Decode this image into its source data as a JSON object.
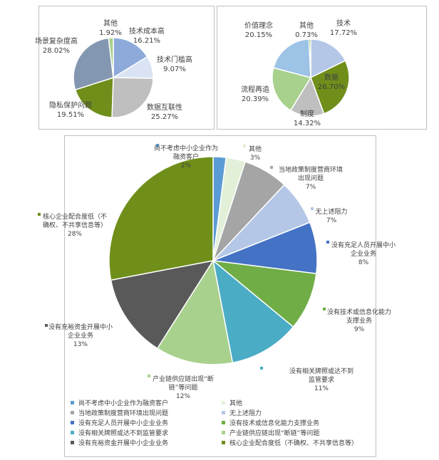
{
  "chart_data": [
    {
      "type": "pie",
      "slices": [
        {
          "label": "技术成本高",
          "value_label": "16.21%",
          "value": 16.21,
          "color": "#8eaadb"
        },
        {
          "label": "技术门槛高",
          "value_label": "9.07%",
          "value": 9.07,
          "color": "#dae3f3"
        },
        {
          "label": "数据互联性",
          "value_label": "25.27%",
          "value": 25.27,
          "color": "#bfbfbf"
        },
        {
          "label": "隐私保护问题",
          "value_label": "19.51%",
          "value": 19.51,
          "color": "#6f8f1a"
        },
        {
          "label": "场景复杂度高",
          "value_label": "28.02%",
          "value": 28.02,
          "color": "#8497b0"
        },
        {
          "label": "其他",
          "value_label": "1.92%",
          "value": 1.92,
          "color": "#a9d18e"
        }
      ]
    },
    {
      "type": "pie",
      "slices": [
        {
          "label": "技术",
          "value_label": "17.72%",
          "value": 17.72,
          "color": "#b4c7e7"
        },
        {
          "label": "数据",
          "value_label": "26.70%",
          "value": 26.7,
          "color": "#6f8f1a"
        },
        {
          "label": "制度",
          "value_label": "14.32%",
          "value": 14.32,
          "color": "#bfbfbf"
        },
        {
          "label": "流程再造",
          "value_label": "20.39%",
          "value": 20.39,
          "color": "#a9d18e"
        },
        {
          "label": "价值理念",
          "value_label": "20.15%",
          "value": 20.15,
          "color": "#9dc3e6"
        },
        {
          "label": "其他",
          "value_label": "0.73%",
          "value": 0.73,
          "color": "#70ad47"
        }
      ]
    },
    {
      "type": "pie",
      "slices": [
        {
          "label": "尚不考虑中小企业作为融资客户",
          "label_lines": [
            "尚不考虑中小企业作为",
            "融资客户"
          ],
          "value_label": "2%",
          "value": 2,
          "color": "#5b9bd5"
        },
        {
          "label": "其他",
          "label_lines": [
            "其他"
          ],
          "value_label": "3%",
          "value": 3,
          "color": "#e2f0d9"
        },
        {
          "label": "当地政策制度营商环境出现问题",
          "label_lines": [
            "当地政策制度营商环境",
            "出现问题"
          ],
          "value_label": "7%",
          "value": 7,
          "color": "#a5a5a5"
        },
        {
          "label": "无上述阻力",
          "label_lines": [
            "无上述阻力"
          ],
          "value_label": "7%",
          "value": 7,
          "color": "#b4c7e7"
        },
        {
          "label": "没有充足人员开展中小企业业务",
          "label_lines": [
            "没有充足人员开展中小",
            "企业业务"
          ],
          "value_label": "8%",
          "value": 8,
          "color": "#4472c4"
        },
        {
          "label": "没有技术或信息化能力支撑业务",
          "label_lines": [
            "没有技术或信息化能力",
            "支撑业务"
          ],
          "value_label": "9%",
          "value": 9,
          "color": "#70ad47"
        },
        {
          "label": "没有相关牌照或达不到监管要求",
          "label_lines": [
            "没有相关牌照或达不到",
            "监管要求"
          ],
          "value_label": "11%",
          "value": 11,
          "color": "#4bacc6"
        },
        {
          "label": "产业链供应链出现“断链”等问题",
          "label_lines": [
            "产业链供应链出现“断",
            "链”等问题"
          ],
          "value_label": "12%",
          "value": 12,
          "color": "#a9d18e"
        },
        {
          "label": "没有充裕资金开展中小企业业务",
          "label_lines": [
            "没有充裕资金开展中小",
            "企业业务"
          ],
          "value_label": "13%",
          "value": 13,
          "color": "#595959"
        },
        {
          "label": "核心企业配合度低（不确权、不共享信息等）",
          "label_lines": [
            "核心企业配合度低（不",
            "确权、不共享信息等）"
          ],
          "value_label": "28%",
          "value": 28,
          "color": "#6f8f1a"
        }
      ],
      "legend": {
        "placement": "bottom",
        "items": [
          {
            "label": "尚不考虑中小企业作为融资客户",
            "color": "#5b9bd5"
          },
          {
            "label": "其他",
            "color": "#e2f0d9"
          },
          {
            "label": "当地政策制度营商环境出现问题",
            "color": "#a5a5a5"
          },
          {
            "label": "无上述阻力",
            "color": "#b4c7e7"
          },
          {
            "label": "没有充足人员开展中小企业业务",
            "color": "#4472c4"
          },
          {
            "label": "没有技术或信息化能力支撑业务",
            "color": "#70ad47"
          },
          {
            "label": "没有相关牌照或达不到监管要求",
            "color": "#4bacc6"
          },
          {
            "label": "产业链供应链出现“断链”等问题",
            "color": "#a9d18e"
          },
          {
            "label": "没有充裕资金开展中小企业业务",
            "color": "#595959"
          },
          {
            "label": "核心企业配合度低（不确权、不共享信息等）",
            "color": "#6f8f1a"
          }
        ]
      }
    }
  ]
}
